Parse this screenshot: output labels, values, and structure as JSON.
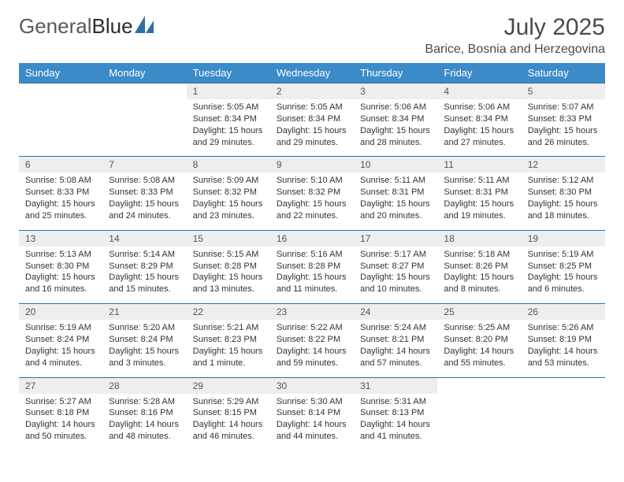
{
  "logo": {
    "text1": "General",
    "text2": "Blue"
  },
  "title": "July 2025",
  "location": "Barice, Bosnia and Herzegovina",
  "colors": {
    "header_bg": "#3b8bc9",
    "header_text": "#ffffff",
    "daynum_bg": "#eeeeee",
    "rule": "#2f6fa3",
    "body_text": "#333333",
    "logo_accent": "#2f6fa3"
  },
  "day_names": [
    "Sunday",
    "Monday",
    "Tuesday",
    "Wednesday",
    "Thursday",
    "Friday",
    "Saturday"
  ],
  "weeks": [
    {
      "nums": [
        "",
        "",
        "1",
        "2",
        "3",
        "4",
        "5"
      ],
      "cells": [
        null,
        null,
        {
          "sunrise": "Sunrise: 5:05 AM",
          "sunset": "Sunset: 8:34 PM",
          "day1": "Daylight: 15 hours",
          "day2": "and 29 minutes."
        },
        {
          "sunrise": "Sunrise: 5:05 AM",
          "sunset": "Sunset: 8:34 PM",
          "day1": "Daylight: 15 hours",
          "day2": "and 29 minutes."
        },
        {
          "sunrise": "Sunrise: 5:06 AM",
          "sunset": "Sunset: 8:34 PM",
          "day1": "Daylight: 15 hours",
          "day2": "and 28 minutes."
        },
        {
          "sunrise": "Sunrise: 5:06 AM",
          "sunset": "Sunset: 8:34 PM",
          "day1": "Daylight: 15 hours",
          "day2": "and 27 minutes."
        },
        {
          "sunrise": "Sunrise: 5:07 AM",
          "sunset": "Sunset: 8:33 PM",
          "day1": "Daylight: 15 hours",
          "day2": "and 26 minutes."
        }
      ]
    },
    {
      "nums": [
        "6",
        "7",
        "8",
        "9",
        "10",
        "11",
        "12"
      ],
      "cells": [
        {
          "sunrise": "Sunrise: 5:08 AM",
          "sunset": "Sunset: 8:33 PM",
          "day1": "Daylight: 15 hours",
          "day2": "and 25 minutes."
        },
        {
          "sunrise": "Sunrise: 5:08 AM",
          "sunset": "Sunset: 8:33 PM",
          "day1": "Daylight: 15 hours",
          "day2": "and 24 minutes."
        },
        {
          "sunrise": "Sunrise: 5:09 AM",
          "sunset": "Sunset: 8:32 PM",
          "day1": "Daylight: 15 hours",
          "day2": "and 23 minutes."
        },
        {
          "sunrise": "Sunrise: 5:10 AM",
          "sunset": "Sunset: 8:32 PM",
          "day1": "Daylight: 15 hours",
          "day2": "and 22 minutes."
        },
        {
          "sunrise": "Sunrise: 5:11 AM",
          "sunset": "Sunset: 8:31 PM",
          "day1": "Daylight: 15 hours",
          "day2": "and 20 minutes."
        },
        {
          "sunrise": "Sunrise: 5:11 AM",
          "sunset": "Sunset: 8:31 PM",
          "day1": "Daylight: 15 hours",
          "day2": "and 19 minutes."
        },
        {
          "sunrise": "Sunrise: 5:12 AM",
          "sunset": "Sunset: 8:30 PM",
          "day1": "Daylight: 15 hours",
          "day2": "and 18 minutes."
        }
      ]
    },
    {
      "nums": [
        "13",
        "14",
        "15",
        "16",
        "17",
        "18",
        "19"
      ],
      "cells": [
        {
          "sunrise": "Sunrise: 5:13 AM",
          "sunset": "Sunset: 8:30 PM",
          "day1": "Daylight: 15 hours",
          "day2": "and 16 minutes."
        },
        {
          "sunrise": "Sunrise: 5:14 AM",
          "sunset": "Sunset: 8:29 PM",
          "day1": "Daylight: 15 hours",
          "day2": "and 15 minutes."
        },
        {
          "sunrise": "Sunrise: 5:15 AM",
          "sunset": "Sunset: 8:28 PM",
          "day1": "Daylight: 15 hours",
          "day2": "and 13 minutes."
        },
        {
          "sunrise": "Sunrise: 5:16 AM",
          "sunset": "Sunset: 8:28 PM",
          "day1": "Daylight: 15 hours",
          "day2": "and 11 minutes."
        },
        {
          "sunrise": "Sunrise: 5:17 AM",
          "sunset": "Sunset: 8:27 PM",
          "day1": "Daylight: 15 hours",
          "day2": "and 10 minutes."
        },
        {
          "sunrise": "Sunrise: 5:18 AM",
          "sunset": "Sunset: 8:26 PM",
          "day1": "Daylight: 15 hours",
          "day2": "and 8 minutes."
        },
        {
          "sunrise": "Sunrise: 5:19 AM",
          "sunset": "Sunset: 8:25 PM",
          "day1": "Daylight: 15 hours",
          "day2": "and 6 minutes."
        }
      ]
    },
    {
      "nums": [
        "20",
        "21",
        "22",
        "23",
        "24",
        "25",
        "26"
      ],
      "cells": [
        {
          "sunrise": "Sunrise: 5:19 AM",
          "sunset": "Sunset: 8:24 PM",
          "day1": "Daylight: 15 hours",
          "day2": "and 4 minutes."
        },
        {
          "sunrise": "Sunrise: 5:20 AM",
          "sunset": "Sunset: 8:24 PM",
          "day1": "Daylight: 15 hours",
          "day2": "and 3 minutes."
        },
        {
          "sunrise": "Sunrise: 5:21 AM",
          "sunset": "Sunset: 8:23 PM",
          "day1": "Daylight: 15 hours",
          "day2": "and 1 minute."
        },
        {
          "sunrise": "Sunrise: 5:22 AM",
          "sunset": "Sunset: 8:22 PM",
          "day1": "Daylight: 14 hours",
          "day2": "and 59 minutes."
        },
        {
          "sunrise": "Sunrise: 5:24 AM",
          "sunset": "Sunset: 8:21 PM",
          "day1": "Daylight: 14 hours",
          "day2": "and 57 minutes."
        },
        {
          "sunrise": "Sunrise: 5:25 AM",
          "sunset": "Sunset: 8:20 PM",
          "day1": "Daylight: 14 hours",
          "day2": "and 55 minutes."
        },
        {
          "sunrise": "Sunrise: 5:26 AM",
          "sunset": "Sunset: 8:19 PM",
          "day1": "Daylight: 14 hours",
          "day2": "and 53 minutes."
        }
      ]
    },
    {
      "nums": [
        "27",
        "28",
        "29",
        "30",
        "31",
        "",
        ""
      ],
      "cells": [
        {
          "sunrise": "Sunrise: 5:27 AM",
          "sunset": "Sunset: 8:18 PM",
          "day1": "Daylight: 14 hours",
          "day2": "and 50 minutes."
        },
        {
          "sunrise": "Sunrise: 5:28 AM",
          "sunset": "Sunset: 8:16 PM",
          "day1": "Daylight: 14 hours",
          "day2": "and 48 minutes."
        },
        {
          "sunrise": "Sunrise: 5:29 AM",
          "sunset": "Sunset: 8:15 PM",
          "day1": "Daylight: 14 hours",
          "day2": "and 46 minutes."
        },
        {
          "sunrise": "Sunrise: 5:30 AM",
          "sunset": "Sunset: 8:14 PM",
          "day1": "Daylight: 14 hours",
          "day2": "and 44 minutes."
        },
        {
          "sunrise": "Sunrise: 5:31 AM",
          "sunset": "Sunset: 8:13 PM",
          "day1": "Daylight: 14 hours",
          "day2": "and 41 minutes."
        },
        null,
        null
      ]
    }
  ]
}
